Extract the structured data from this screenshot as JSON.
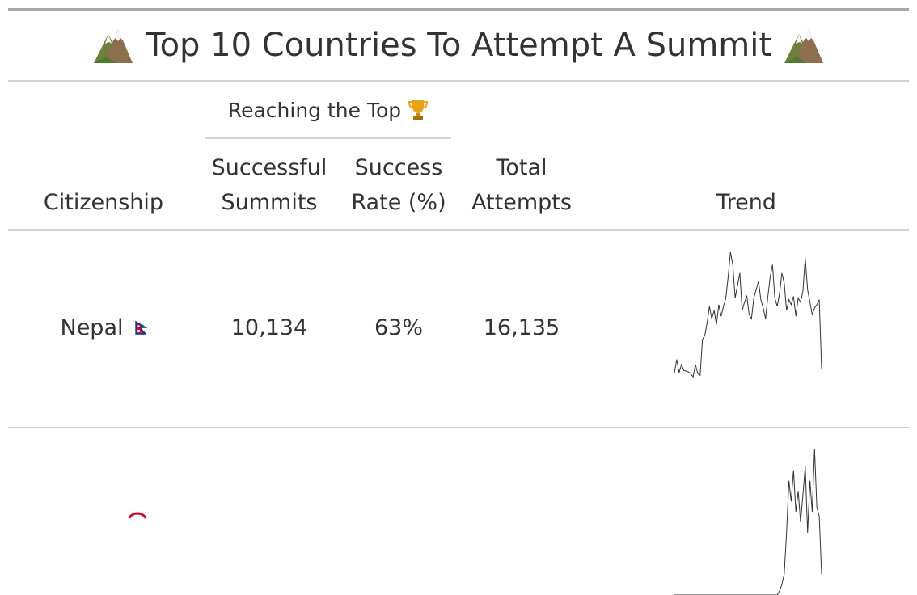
{
  "table": {
    "title": "Top 10 Countries To Attempt A Summit",
    "title_icon": "mountain-icon",
    "spanner": {
      "label": "Reaching the Top",
      "icon": "trophy-icon"
    },
    "columns": {
      "citizenship": "Citizenship",
      "successful_l1": "Successful",
      "successful_l2": "Summits",
      "rate_l1": "Success",
      "rate_l2": "Rate (%)",
      "total_l1": "Total",
      "total_l2": "Attempts",
      "trend": "Trend"
    },
    "rows": [
      {
        "citizenship": "Nepal",
        "flag_icon": "nepal-flag-icon",
        "successful_summits": "10,134",
        "success_rate": "63%",
        "total_attempts": "16,135",
        "trend": [
          30,
          46,
          30,
          40,
          33,
          32,
          31,
          29,
          25,
          40,
          29,
          27,
          70,
          75,
          90,
          110,
          95,
          105,
          88,
          112,
          98,
          110,
          120,
          145,
          175,
          160,
          120,
          135,
          150,
          105,
          115,
          122,
          100,
          95,
          120,
          130,
          140,
          118,
          108,
          95,
          122,
          145,
          160,
          120,
          110,
          125,
          150,
          138,
          105,
          118,
          112,
          122,
          98,
          120,
          115,
          128,
          168,
          130,
          115,
          100,
          108,
          112,
          118,
          35
        ]
      },
      {
        "citizenship": "",
        "flag_icon": "nepal-flag-icon",
        "successful_summits": "",
        "success_rate": "",
        "total_attempts": "",
        "trend": [
          0,
          0,
          0,
          0,
          0,
          0,
          0,
          0,
          0,
          0,
          0,
          0,
          0,
          0,
          0,
          0,
          0,
          0,
          0,
          0,
          0,
          0,
          0,
          0,
          0,
          0,
          0,
          0,
          0,
          0,
          0,
          0,
          0,
          0,
          0,
          0,
          0,
          0,
          0,
          0,
          0,
          0,
          0,
          0,
          0,
          2,
          5,
          10,
          30,
          55,
          45,
          60,
          40,
          50,
          35,
          48,
          62,
          30,
          55,
          40,
          70,
          42,
          38,
          10
        ]
      }
    ]
  }
}
